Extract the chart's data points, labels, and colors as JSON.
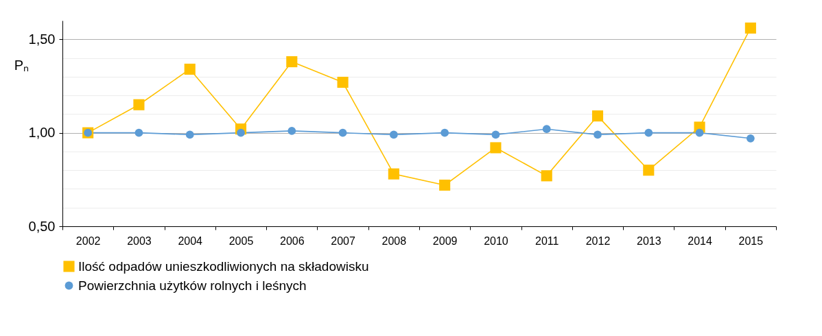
{
  "chart_data": {
    "type": "line",
    "ylabel": "Pₙ",
    "categories": [
      "2002",
      "2003",
      "2004",
      "2005",
      "2006",
      "2007",
      "2008",
      "2009",
      "2010",
      "2011",
      "2012",
      "2013",
      "2014",
      "2015"
    ],
    "series": [
      {
        "name": "Ilość odpadów unieszkodliwionych na składowisku",
        "color": "#ffc000",
        "marker": "square",
        "values": [
          1.0,
          1.15,
          1.34,
          1.02,
          1.38,
          1.27,
          0.78,
          0.72,
          0.92,
          0.77,
          1.09,
          0.8,
          1.03,
          1.56
        ]
      },
      {
        "name": "Powierzchnia użytków rolnych i leśnych",
        "color": "#5b9bd5",
        "marker": "circle",
        "values": [
          1.0,
          1.0,
          0.99,
          1.0,
          1.01,
          1.0,
          0.99,
          1.0,
          0.99,
          1.02,
          0.99,
          1.0,
          1.0,
          0.97
        ]
      }
    ],
    "ylim": [
      0.5,
      1.6
    ],
    "yticks": [
      {
        "value": 0.5,
        "label": "0,50"
      },
      {
        "value": 0.6,
        "label": null
      },
      {
        "value": 0.7,
        "label": null
      },
      {
        "value": 0.8,
        "label": null
      },
      {
        "value": 0.9,
        "label": null
      },
      {
        "value": 1.0,
        "label": "1,00"
      },
      {
        "value": 1.1,
        "label": null
      },
      {
        "value": 1.2,
        "label": null
      },
      {
        "value": 1.3,
        "label": null
      },
      {
        "value": 1.4,
        "label": null
      },
      {
        "value": 1.5,
        "label": "1,50"
      }
    ],
    "grid": "y",
    "legend": "bottom"
  }
}
